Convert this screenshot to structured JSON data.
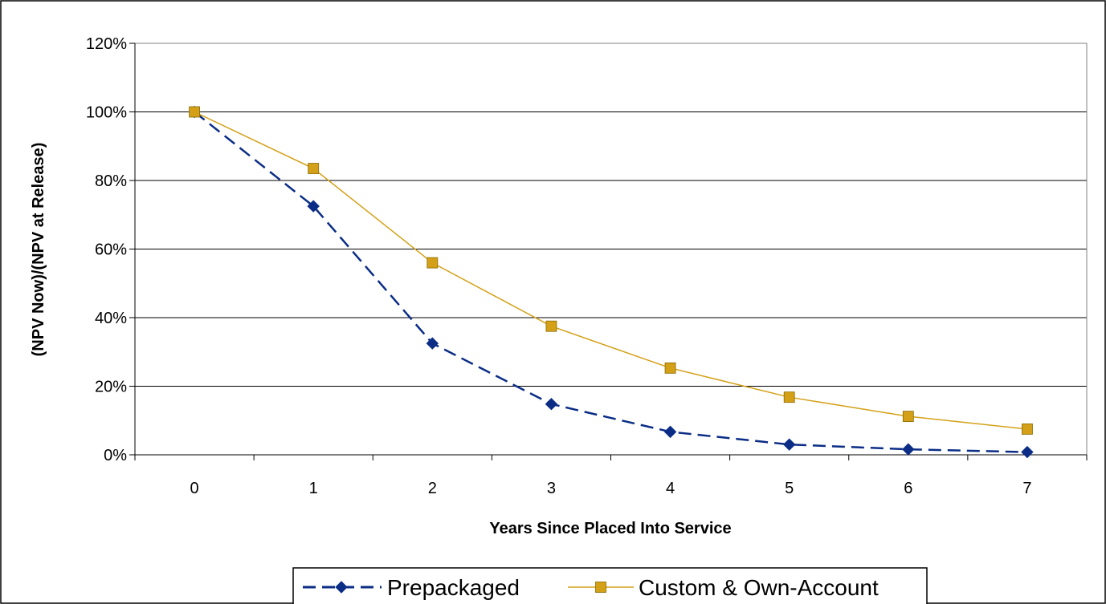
{
  "chart_data": {
    "type": "line",
    "title": "",
    "xlabel": "Years Since Placed Into Service",
    "ylabel": "(NPV Now)/(NPV at Release)",
    "categories": [
      "0",
      "1",
      "2",
      "3",
      "4",
      "5",
      "6",
      "7"
    ],
    "ylim": [
      0,
      120
    ],
    "yticks": [
      0,
      20,
      40,
      60,
      80,
      100,
      120
    ],
    "ytick_labels": [
      "0%",
      "20%",
      "40%",
      "60%",
      "80%",
      "100%",
      "120%"
    ],
    "grid": true,
    "legend_position": "bottom",
    "series": [
      {
        "name": "Prepackaged",
        "values": [
          100,
          72.5,
          32.5,
          14.8,
          6.7,
          3.0,
          1.6,
          0.8
        ],
        "color": "#0B2D86",
        "line_style": "dashed",
        "marker": "diamond"
      },
      {
        "name": "Custom & Own-Account",
        "values": [
          100,
          83.5,
          56,
          37.5,
          25.3,
          16.8,
          11.2,
          7.5
        ],
        "color": "#D4A017",
        "line_style": "solid",
        "marker": "square"
      }
    ]
  }
}
